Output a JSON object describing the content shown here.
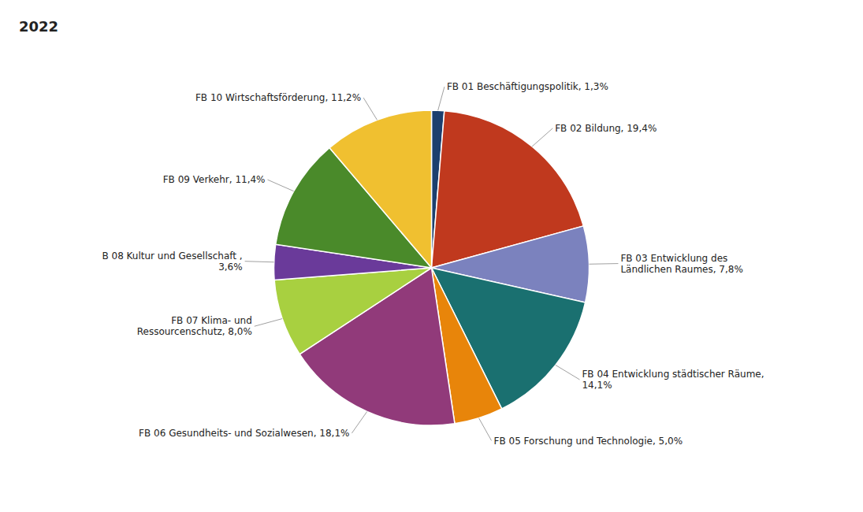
{
  "chart_data": {
    "type": "pie",
    "title": "2022",
    "categories": [
      "FB 01 Beschäftigungspolitik, 1,3%",
      "FB 02 Bildung, 19,4%",
      "FB 03 Entwicklung des\nLändlichen Raumes, 7,8%",
      "FB 04 Entwicklung städtischer Räume,\n14,1%",
      "FB 05 Forschung und Technologie, 5,0%",
      "FB 06 Gesundheits- und Sozialwesen, 18,1%",
      "FB 07 Klima- und\nRessourcenschutz, 8,0%",
      "B 08 Kultur und Gesellschaft ,\n3,6%",
      "FB 09 Verkehr, 11,4%",
      "FB 10 Wirtschaftsförderung, 11,2%"
    ],
    "values": [
      1.3,
      19.4,
      7.8,
      14.1,
      5.0,
      18.1,
      8.0,
      3.6,
      11.4,
      11.2
    ],
    "colors": [
      "#1c3f6e",
      "#c0391e",
      "#7b82be",
      "#1a7070",
      "#e8850a",
      "#913a7a",
      "#a8d040",
      "#6a3a9a",
      "#4a8a2a",
      "#f0c030"
    ]
  }
}
